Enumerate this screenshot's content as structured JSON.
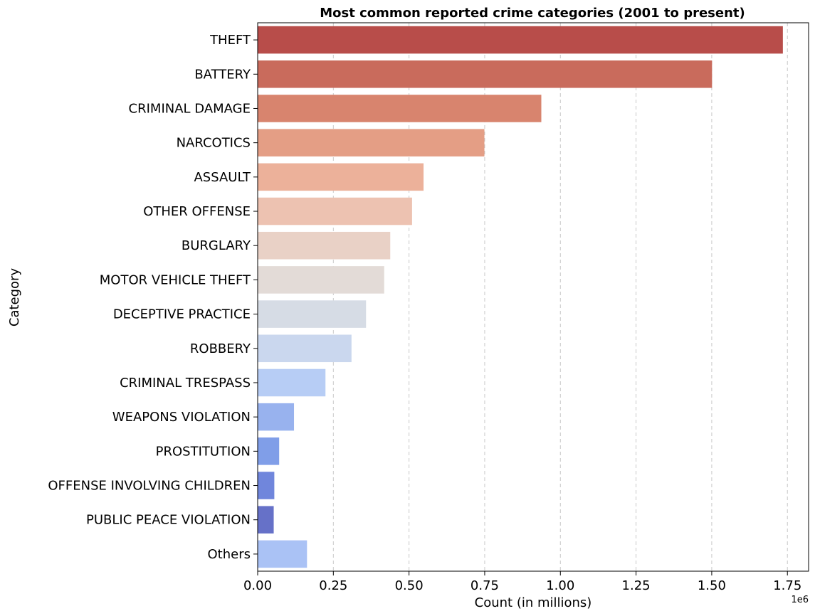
{
  "chart_data": {
    "type": "bar",
    "orientation": "horizontal",
    "title": "Most common reported crime categories (2001 to present)",
    "xlabel": "Count (in millions)",
    "ylabel": "Category",
    "x_offset_label": "1e6",
    "xlim": [
      0,
      1820000
    ],
    "xticks": [
      0,
      250000,
      500000,
      750000,
      1000000,
      1250000,
      1500000,
      1750000
    ],
    "xtick_labels": [
      "0.00",
      "0.25",
      "0.50",
      "0.75",
      "1.00",
      "1.25",
      "1.50",
      "1.75"
    ],
    "grid": "x-dashed",
    "categories": [
      "THEFT",
      "BATTERY",
      "CRIMINAL DAMAGE",
      "NARCOTICS",
      "ASSAULT",
      "OTHER OFFENSE",
      "BURGLARY",
      "MOTOR VEHICLE THEFT",
      "DECEPTIVE PRACTICE",
      "ROBBERY",
      "CRIMINAL TRESPASS",
      "WEAPONS VIOLATION",
      "PROSTITUTION",
      "OFFENSE INVOLVING CHILDREN",
      "PUBLIC PEACE VIOLATION",
      "Others"
    ],
    "values": [
      1735000,
      1501000,
      937000,
      749000,
      548000,
      510000,
      438000,
      418000,
      358000,
      310000,
      224000,
      120000,
      71000,
      55000,
      53000,
      163000
    ],
    "colors": [
      "#b84d4a",
      "#c96b5c",
      "#d8846e",
      "#e49e85",
      "#ecb19a",
      "#edc2b1",
      "#e9d1c6",
      "#e3dbd7",
      "#d6dce5",
      "#cad7ee",
      "#b7cdf5",
      "#98b2ee",
      "#809ee8",
      "#7086dc",
      "#6671c8",
      "#aac2f5"
    ]
  }
}
